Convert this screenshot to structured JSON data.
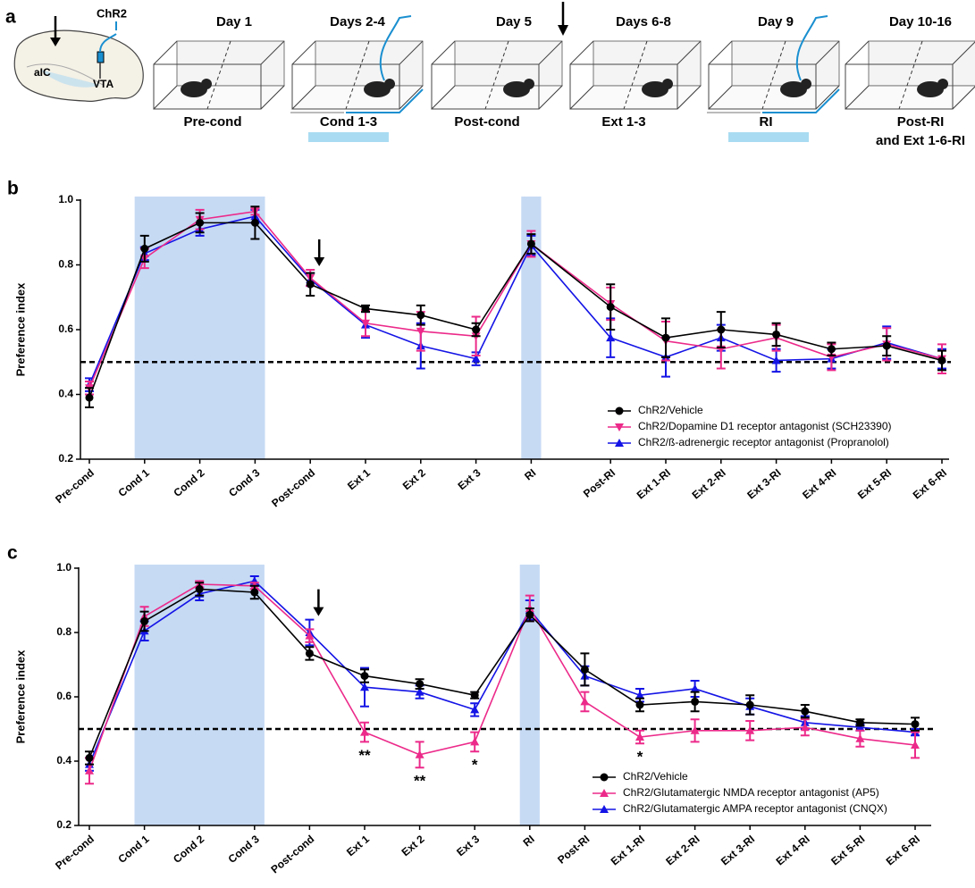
{
  "panel_a": {
    "label": "a",
    "opsin": "ChR2",
    "regions": [
      "aIC",
      "VTA"
    ],
    "days": [
      "Day 1",
      "Days 2-4",
      "Day 5",
      "Days 6-8",
      "Day 9",
      "Day 10-16"
    ],
    "phases": [
      "Pre-cond",
      "Cond 1-3",
      "Post-cond",
      "Ext 1-3",
      "RI",
      [
        "Post-RI",
        "and Ext 1-6-RI"
      ]
    ]
  },
  "chart_data": [
    {
      "type": "line",
      "panel_label": "b",
      "ylabel": "Preference index",
      "categories": [
        "Pre-cond",
        "Cond 1",
        "Cond 2",
        "Cond 3",
        "Post-cond",
        "Ext 1",
        "Ext 2",
        "Ext 3",
        "RI",
        "Post-RI",
        "Ext 1-RI",
        "Ext 2-RI",
        "Ext 3-RI",
        "Ext 4-RI",
        "Ext 5-RI",
        "Ext 6-RI"
      ],
      "series": [
        {
          "name": "ChR2/Vehicle",
          "color": "#000000",
          "marker": "circle",
          "values": [
            0.39,
            0.85,
            0.93,
            0.93,
            0.74,
            0.665,
            0.645,
            0.6,
            0.865,
            0.67,
            0.575,
            0.6,
            0.585,
            0.54,
            0.55,
            0.505
          ],
          "errors": [
            0.03,
            0.04,
            0.03,
            0.05,
            0.035,
            0.01,
            0.03,
            0.02,
            0.03,
            0.07,
            0.06,
            0.055,
            0.035,
            0.02,
            0.03,
            0.03
          ]
        },
        {
          "name": "ChR2/Dopamine D1 receptor antagonist (SCH23390)",
          "color": "#ec2a8a",
          "marker": "triangle-down",
          "values": [
            0.42,
            0.82,
            0.94,
            0.965,
            0.76,
            0.62,
            0.595,
            0.58,
            0.865,
            0.68,
            0.565,
            0.54,
            0.575,
            0.515,
            0.555,
            0.51
          ],
          "errors": [
            0.02,
            0.03,
            0.03,
            0.01,
            0.025,
            0.04,
            0.06,
            0.06,
            0.04,
            0.05,
            0.06,
            0.06,
            0.04,
            0.04,
            0.05,
            0.045
          ]
        },
        {
          "name": "ChR2/ß-adrenergic receptor antagonist (Propranolol)",
          "color": "#1414e6",
          "marker": "triangle-up",
          "values": [
            0.43,
            0.835,
            0.91,
            0.95,
            0.755,
            0.615,
            0.55,
            0.51,
            0.86,
            0.575,
            0.515,
            0.575,
            0.505,
            0.51,
            0.56,
            0.51
          ],
          "errors": [
            0.02,
            0.02,
            0.02,
            0.02,
            0.02,
            0.04,
            0.07,
            0.02,
            0.03,
            0.06,
            0.06,
            0.04,
            0.035,
            0.03,
            0.05,
            0.03
          ]
        }
      ],
      "ylim": [
        0.2,
        1
      ],
      "yticks": [
        0.2,
        0.4,
        0.6,
        0.8,
        {
          "value": 1,
          "label": "1.0"
        }
      ],
      "reference_line": 0.5,
      "shaded": [
        [
          1,
          3
        ],
        [
          8,
          8
        ]
      ],
      "shade_color": "#c6daf4",
      "arrow_at": 4,
      "legend": "lower right"
    },
    {
      "type": "line",
      "panel_label": "c",
      "ylabel": "Preference index",
      "categories": [
        "Pre-cond",
        "Cond 1",
        "Cond 2",
        "Cond 3",
        "Post-cond",
        "Ext 1",
        "Ext 2",
        "Ext 3",
        "RI",
        "Post-RI",
        "Ext 1-RI",
        "Ext 2-RI",
        "Ext 3-RI",
        "Ext 4-RI",
        "Ext 5-RI",
        "Ext 6-RI"
      ],
      "series": [
        {
          "name": "ChR2/Vehicle",
          "color": "#000000",
          "marker": "circle",
          "values": [
            0.41,
            0.835,
            0.935,
            0.925,
            0.735,
            0.665,
            0.64,
            0.605,
            0.855,
            0.685,
            0.575,
            0.585,
            0.575,
            0.555,
            0.52,
            0.515
          ],
          "errors": [
            0.02,
            0.03,
            0.02,
            0.02,
            0.02,
            0.02,
            0.015,
            0.01,
            0.02,
            0.05,
            0.02,
            0.03,
            0.03,
            0.02,
            0.01,
            0.02
          ]
        },
        {
          "name": "ChR2/Glutamatergic NMDA receptor antagonist (AP5)",
          "color": "#ec2a8a",
          "marker": "triangle-up",
          "values": [
            0.37,
            0.85,
            0.95,
            0.945,
            0.79,
            0.49,
            0.42,
            0.46,
            0.875,
            0.585,
            0.475,
            0.495,
            0.495,
            0.505,
            0.47,
            0.45
          ],
          "errors": [
            0.04,
            0.03,
            0.01,
            0.01,
            0.02,
            0.03,
            0.04,
            0.03,
            0.04,
            0.03,
            0.02,
            0.035,
            0.03,
            0.025,
            0.025,
            0.04
          ]
        },
        {
          "name": "ChR2/Glutamatergic AMPA receptor antagonist (CNQX)",
          "color": "#1414e6",
          "marker": "triangle-up",
          "values": [
            0.39,
            0.805,
            0.92,
            0.96,
            0.8,
            0.63,
            0.615,
            0.56,
            0.87,
            0.665,
            0.605,
            0.625,
            0.57,
            0.52,
            0.505,
            0.49
          ],
          "errors": [
            0.02,
            0.03,
            0.02,
            0.015,
            0.04,
            0.06,
            0.02,
            0.02,
            0.03,
            0.03,
            0.02,
            0.025,
            0.025,
            0.02,
            0.01,
            0.01
          ]
        }
      ],
      "ylim": [
        0.2,
        1
      ],
      "yticks": [
        0.2,
        0.4,
        0.6,
        0.8,
        {
          "value": 1,
          "label": "1.0"
        }
      ],
      "reference_line": 0.5,
      "shaded": [
        [
          1,
          3
        ],
        [
          8,
          8
        ]
      ],
      "shade_color": "#c6daf4",
      "arrow_at": 4,
      "legend": "lower right",
      "annotations": [
        {
          "text": "**",
          "category": 5,
          "series": 1
        },
        {
          "text": "**",
          "category": 6,
          "series": 1
        },
        {
          "text": "*",
          "category": 7,
          "series": 1
        },
        {
          "text": "*",
          "category": 10,
          "series": 1
        }
      ]
    }
  ]
}
